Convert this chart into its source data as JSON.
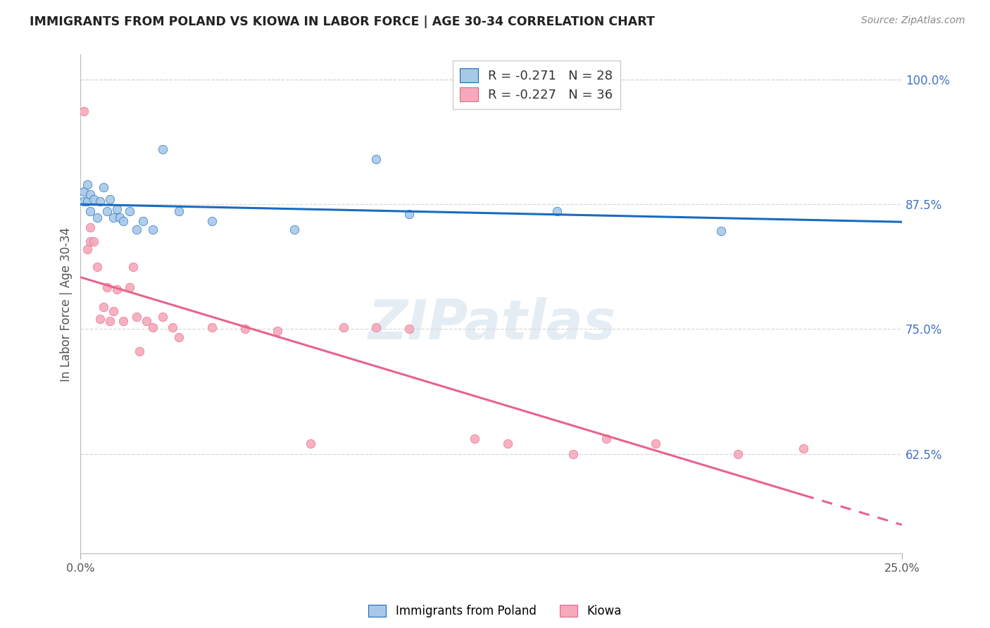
{
  "title": "IMMIGRANTS FROM POLAND VS KIOWA IN LABOR FORCE | AGE 30-34 CORRELATION CHART",
  "source": "Source: ZipAtlas.com",
  "ylabel": "In Labor Force | Age 30-34",
  "right_yticks": [
    0.625,
    0.75,
    0.875,
    1.0
  ],
  "right_yticklabels": [
    "62.5%",
    "75.0%",
    "87.5%",
    "100.0%"
  ],
  "xmin": 0.0,
  "xmax": 0.25,
  "ymin": 0.525,
  "ymax": 1.025,
  "poland_color": "#a8c8e8",
  "kiowa_color": "#f5aabb",
  "poland_line_color": "#1a6bbf",
  "kiowa_line_color": "#e8638a",
  "poland_R": -0.271,
  "poland_N": 28,
  "kiowa_R": -0.227,
  "kiowa_N": 36,
  "watermark": "ZIPatlas",
  "poland_x": [
    0.001,
    0.001,
    0.002,
    0.002,
    0.003,
    0.003,
    0.004,
    0.005,
    0.006,
    0.007,
    0.008,
    0.009,
    0.01,
    0.011,
    0.012,
    0.013,
    0.015,
    0.017,
    0.019,
    0.022,
    0.025,
    0.03,
    0.04,
    0.065,
    0.09,
    0.1,
    0.145,
    0.195
  ],
  "poland_y": [
    0.878,
    0.888,
    0.895,
    0.878,
    0.885,
    0.868,
    0.88,
    0.862,
    0.878,
    0.892,
    0.868,
    0.88,
    0.862,
    0.87,
    0.862,
    0.858,
    0.868,
    0.85,
    0.858,
    0.85,
    0.93,
    0.868,
    0.858,
    0.85,
    0.92,
    0.865,
    0.868,
    0.848
  ],
  "kiowa_x": [
    0.001,
    0.002,
    0.003,
    0.003,
    0.004,
    0.005,
    0.006,
    0.007,
    0.008,
    0.009,
    0.01,
    0.011,
    0.013,
    0.015,
    0.016,
    0.017,
    0.018,
    0.02,
    0.022,
    0.025,
    0.028,
    0.03,
    0.04,
    0.05,
    0.06,
    0.07,
    0.08,
    0.09,
    0.1,
    0.12,
    0.13,
    0.15,
    0.16,
    0.175,
    0.2,
    0.22
  ],
  "kiowa_y": [
    0.968,
    0.83,
    0.852,
    0.838,
    0.838,
    0.812,
    0.76,
    0.772,
    0.792,
    0.758,
    0.768,
    0.79,
    0.758,
    0.792,
    0.812,
    0.762,
    0.728,
    0.758,
    0.752,
    0.762,
    0.752,
    0.742,
    0.752,
    0.75,
    0.748,
    0.635,
    0.752,
    0.752,
    0.75,
    0.64,
    0.635,
    0.625,
    0.64,
    0.635,
    0.625,
    0.63
  ],
  "background_color": "#ffffff",
  "grid_color": "#d8d8d8",
  "title_color": "#222222",
  "right_axis_color": "#4472c4",
  "marker_size": 80
}
